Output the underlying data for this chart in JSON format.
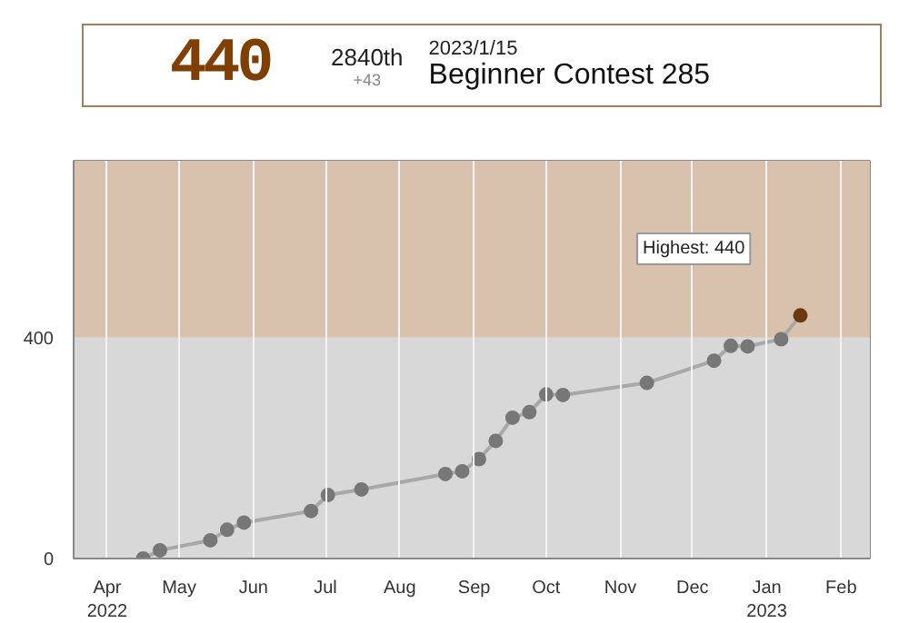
{
  "chart_data": {
    "type": "line",
    "x": [
      "2022-04-16",
      "2022-04-23",
      "2022-05-14",
      "2022-05-21",
      "2022-05-28",
      "2022-06-25",
      "2022-07-02",
      "2022-07-16",
      "2022-08-20",
      "2022-08-27",
      "2022-09-03",
      "2022-09-10",
      "2022-09-17",
      "2022-09-24",
      "2022-10-01",
      "2022-10-08",
      "2022-11-12",
      "2022-12-10",
      "2022-12-17",
      "2022-12-24",
      "2023-01-07",
      "2023-01-15"
    ],
    "series": [
      {
        "color": "#a8a8a8",
        "colors": [
          "#777777",
          "#777777",
          "#777777",
          "#777777",
          "#777777",
          "#777777",
          "#777777",
          "#777777",
          "#777777",
          "#777777",
          "#777777",
          "#777777",
          "#777777",
          "#777777",
          "#777777",
          "#777777",
          "#777777",
          "#777777",
          "#777777",
          "#777777",
          "#777777",
          "#6b3a10"
        ],
        "values": [
          0,
          15,
          33,
          52,
          65,
          86,
          115,
          125,
          153,
          158,
          180,
          213,
          255,
          265,
          297,
          296,
          318,
          358,
          385,
          384,
          397,
          440
        ]
      }
    ],
    "marker": "circle",
    "xlim": [
      "2022-03-18",
      "2023-02-13"
    ],
    "xticks": [
      {
        "value": "2022-04-01",
        "label": "Apr\n2022"
      },
      {
        "value": "2022-05-01",
        "label": "May"
      },
      {
        "value": "2022-06-01",
        "label": "Jun"
      },
      {
        "value": "2022-07-01",
        "label": "Jul"
      },
      {
        "value": "2022-08-01",
        "label": "Aug"
      },
      {
        "value": "2022-09-01",
        "label": "Sep"
      },
      {
        "value": "2022-10-01",
        "label": "Oct"
      },
      {
        "value": "2022-11-01",
        "label": "Nov"
      },
      {
        "value": "2022-12-01",
        "label": "Dec"
      },
      {
        "value": "2023-01-01",
        "label": "Jan\n2023"
      },
      {
        "value": "2023-02-01",
        "label": "Feb"
      }
    ],
    "ylim": [
      0,
      720
    ],
    "yticks": [
      0,
      400
    ],
    "grid": "x",
    "bands": [
      {
        "axis": "y",
        "from": 0,
        "to": 400,
        "color": "#d8d8d8"
      },
      {
        "axis": "y",
        "from": 400,
        "to": 720,
        "color": "#d9c2ad"
      }
    ],
    "annotations": [
      "440",
      "2840th",
      "+43",
      "2023/1/15",
      "Beginner Contest 285",
      "Highest: 440"
    ]
  }
}
